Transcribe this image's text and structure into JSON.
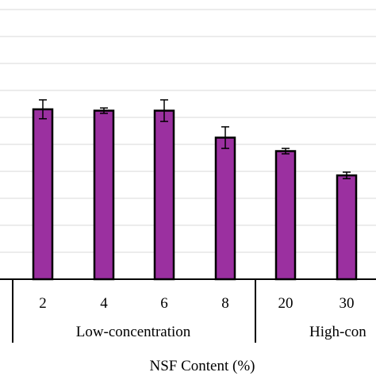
{
  "chart_data": {
    "type": "bar",
    "categories": [
      "2",
      "4",
      "6",
      "8",
      "20",
      "30"
    ],
    "values": [
      6.3,
      6.25,
      6.25,
      5.25,
      4.75,
      3.85
    ],
    "errors": [
      0.35,
      0.1,
      0.4,
      0.4,
      0.1,
      0.12
    ],
    "groups": [
      {
        "label": "Low-concentration",
        "categories": [
          "2",
          "4",
          "6",
          "8"
        ]
      },
      {
        "label": "High-con",
        "categories": [
          "20",
          "30"
        ]
      }
    ],
    "xlabel": "NSF Content (%)",
    "ylabel": "",
    "ylim": [
      0,
      10.5
    ],
    "gridlines": [
      1,
      2,
      3,
      4,
      5,
      6,
      7,
      8,
      9,
      10
    ],
    "grid": true,
    "colors": {
      "bar_fill": "#9B30A0",
      "bar_edge": "#000000",
      "grid": "#d9d9d9",
      "axis": "#000000"
    }
  }
}
